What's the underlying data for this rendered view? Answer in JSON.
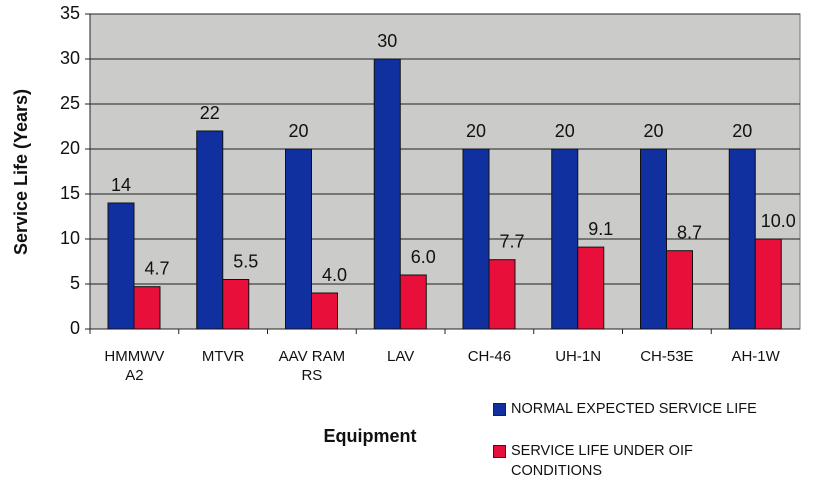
{
  "chart_data": {
    "type": "bar",
    "y_label": "Service Life (Years)",
    "x_label": "Equipment",
    "categories": [
      "HMMWV A2",
      "MTVR",
      "AAV RAM RS",
      "LAV",
      "CH-46",
      "UH-1N",
      "CH-53E",
      "AH-1W"
    ],
    "series": [
      {
        "name": "NORMAL EXPECTED SERVICE LIFE",
        "color": "#1030a0",
        "values": [
          14,
          22,
          20,
          30,
          20,
          20,
          20,
          20
        ]
      },
      {
        "name": "SERVICE LIFE UNDER OIF CONDITIONS",
        "color": "#e8103a",
        "values": [
          4.7,
          5.5,
          4,
          6,
          7.7,
          9.1,
          8.7,
          10
        ],
        "value_labels": [
          "4.7",
          "5.5",
          "4.0",
          "6.0",
          "7.7",
          "9.1",
          "8.7",
          "10.0"
        ]
      }
    ],
    "ylim": [
      0,
      35
    ],
    "yticks": [
      0,
      5,
      10,
      15,
      20,
      25,
      30,
      35
    ],
    "grid": true,
    "legend": "bottom-right"
  }
}
